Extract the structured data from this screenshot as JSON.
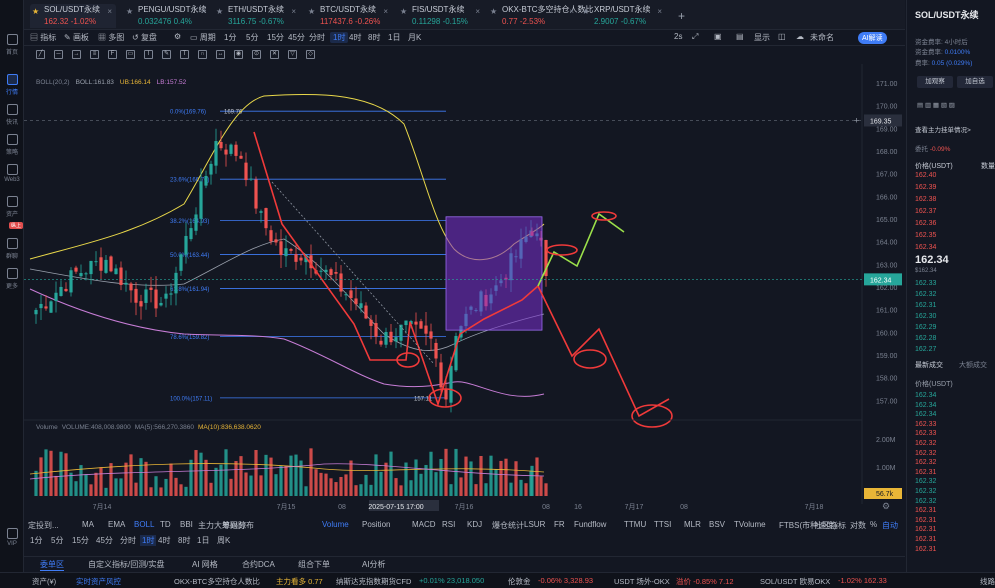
{
  "left_nav": [
    {
      "label": "首页",
      "icon": "home-icon"
    },
    {
      "label": "行情",
      "icon": "market-icon",
      "active": true
    },
    {
      "label": "快讯",
      "icon": "news-icon"
    },
    {
      "label": "策略",
      "icon": "strategy-icon"
    },
    {
      "label": "Web3",
      "icon": "web3-icon"
    },
    {
      "label": "资产",
      "icon": "wallet-icon"
    },
    {
      "label": "群聊",
      "icon": "chat-icon"
    },
    {
      "label": "更多",
      "icon": "more-icon"
    },
    {
      "label": "VIP",
      "icon": "vip-icon"
    }
  ],
  "left_nav_badge": "纵上",
  "tabs": [
    {
      "name": "SOL/USDT永续",
      "price": "162.32",
      "change": "-1.02%",
      "dir": "dn",
      "active": true
    },
    {
      "name": "PENGU/USDT永续",
      "price": "0.032476",
      "change": "0.4%",
      "dir": "up"
    },
    {
      "name": "ETH/USDT永续",
      "price": "3116.75",
      "change": "-0.67%",
      "dir": "up"
    },
    {
      "name": "BTC/USDT永续",
      "price": "117437.6",
      "change": "-0.26%",
      "dir": "dn"
    },
    {
      "name": "FIS/USDT永续",
      "price": "0.11298",
      "change": "-0.15%",
      "dir": "up"
    },
    {
      "name": "OKX-BTC多空持仓人数比",
      "price": "0.77",
      "change": "-2.53%",
      "dir": "dn"
    },
    {
      "name": "XRP/USDT永续",
      "price": "2.9007",
      "change": "-0.67%",
      "dir": "up"
    }
  ],
  "toolbar": {
    "items": [
      "指标",
      "画板",
      "多图",
      "复盘",
      "周期"
    ],
    "timeframes": [
      "1分",
      "5分",
      "15分",
      "45分",
      "分时",
      "1时",
      "4时",
      "8时",
      "1日",
      "月K"
    ],
    "active_tf": "1时",
    "right": [
      "2s",
      "显示",
      "未命名",
      "AI解读"
    ]
  },
  "chart_data": {
    "type": "candlestick",
    "symbol": "SOL/USDT永续",
    "interval": "1h",
    "boll_label": "BOLL(20,2)",
    "boll_values": {
      "mid": "BOLL:161.83",
      "ub": "UB:166.14",
      "lb": "LB:157.52"
    },
    "ylim": [
      156.4,
      171.4
    ],
    "y_ticks": [
      "171.00",
      "170.00",
      "169.00",
      "168.00",
      "167.00",
      "166.00",
      "165.00",
      "164.00",
      "163.00",
      "162.00",
      "161.00",
      "160.00",
      "159.00",
      "158.00",
      "157.00"
    ],
    "x_ticks": [
      "7月14",
      "7月15",
      "08",
      "2025-07-15 17:00",
      "7月16",
      "08",
      "16",
      "7月17",
      "08",
      "7月18"
    ],
    "price_marker": "162.34",
    "cross_price": "169.35",
    "fib_levels": [
      {
        "label": "0.0%(169.76)",
        "value": 169.76
      },
      {
        "label": "23.6%(166.76)",
        "value": 166.76
      },
      {
        "label": "38.2%(164.93)",
        "value": 164.93
      },
      {
        "label": "50.0%(163.44)",
        "value": 163.44
      },
      {
        "label": "61.8%(161.94)",
        "value": 161.94
      },
      {
        "label": "78.6%(159.82)",
        "value": 159.82
      },
      {
        "label": "100.0%(157.11)",
        "value": 157.11
      }
    ],
    "fib_high_label": "169.76",
    "fib_low_label": "157.11",
    "volume_label": "Volume",
    "volume_values": [
      "VOLUME:408,008.9800",
      "MA(5):566,270.3860",
      "MA(10):836,638.0620"
    ],
    "volume_ticks": [
      "2.00M",
      "1.00M"
    ],
    "volume_marker": "56.7k"
  },
  "indicators": [
    "Volume",
    "Position",
    "MACD",
    "RSI",
    "KDJ",
    "爆仓统计",
    "LSUR",
    "FR",
    "Fundflow",
    "TTMU",
    "TTSI",
    "MLR",
    "BSV",
    "TVolume",
    "FTBS(市种速度)"
  ],
  "indicator_left": [
    "定投到...",
    "MA",
    "EMA",
    "BOLL",
    "TD",
    "BBI",
    "主力大单跟踪",
    "筹码分布"
  ],
  "indicator_right": [
    "社区指标",
    "对数",
    "%",
    "自动"
  ],
  "bottom_tf": [
    "1分",
    "5分",
    "15分",
    "45分",
    "分时",
    "1时",
    "4时",
    "8时",
    "1日",
    "周K"
  ],
  "bottom_tabs": [
    "委单区",
    "自定义指标/回测/实盘",
    "AI 网格",
    "合约DCA",
    "组合下单",
    "AI分析"
  ],
  "ticker": [
    {
      "t": "资产(¥)",
      "c": "#b5bac4"
    },
    {
      "t": "实时资产风控",
      "c": "#3f7cf6"
    },
    {
      "t": "OKX-BTC多空持仓人数比",
      "c": "#b5bac4"
    },
    {
      "t": "主力看多 0.77",
      "c": "#e9b637"
    },
    {
      "t": "纳斯达克指数期货CFD",
      "c": "#b5bac4"
    },
    {
      "t": "+0.01% 23,018.050",
      "c": "#26a69a"
    },
    {
      "t": "伦敦金",
      "c": "#b5bac4"
    },
    {
      "t": "-0.06% 3,328.93",
      "c": "#ef5350"
    },
    {
      "t": "USDT 场外-OKX",
      "c": "#b5bac4"
    },
    {
      "t": "溢价 -0.85% 7.12",
      "c": "#ef5350"
    },
    {
      "t": "SOL/USDT 欧易OKX",
      "c": "#b5bac4"
    },
    {
      "t": "-1.02% 162.33",
      "c": "#ef5350"
    },
    {
      "t": "线路",
      "c": "#b5bac4"
    }
  ],
  "right_panel": {
    "symbol": "SOL/USDT永续",
    "funding_label": "资金费率:",
    "funding_time": "4小时后",
    "funding_rate_label": "资金费率:",
    "funding_rate": "0.0100%",
    "rate_label": "费率:",
    "rate": "0.05 (0.029%)",
    "buttons": [
      "加观察",
      "加自选"
    ],
    "main_force": "查看主力挂单情况>",
    "depth_label": "委托",
    "depth_change": "-0.09%",
    "col_price": "价格(USDT)",
    "col_qty": "数量",
    "asks": [
      "162.40",
      "162.39",
      "162.38",
      "162.37",
      "162.36",
      "162.35",
      "162.34"
    ],
    "last": "162.34",
    "last_sub": "$162.34",
    "bids": [
      "162.33",
      "162.32",
      "162.31",
      "162.30",
      "162.29",
      "162.28",
      "162.27"
    ],
    "trades_tabs": [
      "最新成交",
      "大额成交"
    ],
    "trades_price_label": "价格(USDT)",
    "trades": [
      {
        "p": "162.34",
        "d": "up"
      },
      {
        "p": "162.34",
        "d": "up"
      },
      {
        "p": "162.34",
        "d": "up"
      },
      {
        "p": "162.33",
        "d": "dn"
      },
      {
        "p": "162.33",
        "d": "dn"
      },
      {
        "p": "162.32",
        "d": "dn"
      },
      {
        "p": "162.32",
        "d": "dn"
      },
      {
        "p": "162.32",
        "d": "dn"
      },
      {
        "p": "162.31",
        "d": "dn"
      },
      {
        "p": "162.32",
        "d": "up"
      },
      {
        "p": "162.32",
        "d": "up"
      },
      {
        "p": "162.32",
        "d": "up"
      },
      {
        "p": "162.31",
        "d": "dn"
      },
      {
        "p": "162.31",
        "d": "dn"
      },
      {
        "p": "162.31",
        "d": "dn"
      },
      {
        "p": "162.31",
        "d": "dn"
      },
      {
        "p": "162.31",
        "d": "dn"
      }
    ]
  }
}
